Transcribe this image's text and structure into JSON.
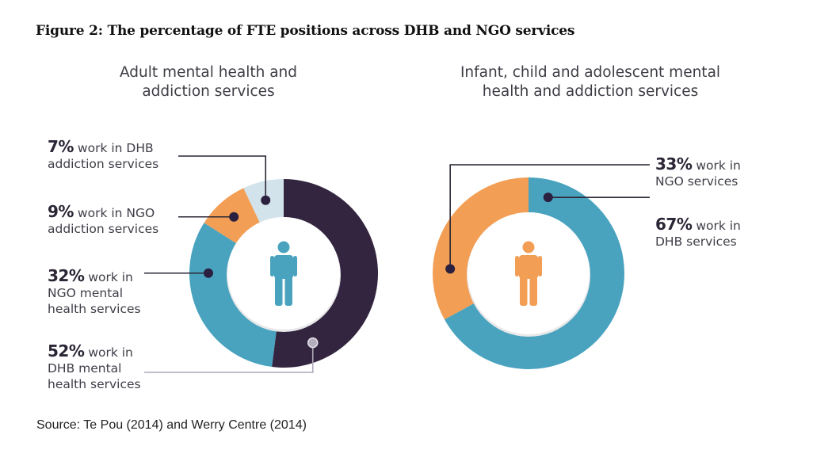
{
  "figure_title": "Figure 2: The percentage of FTE positions across DHB and NGO services",
  "source": "Source: Te Pou (2014) and Werry Centre (2014)",
  "colors": {
    "dark_purple": "#33253f",
    "teal": "#49a3bf",
    "orange": "#f29e55",
    "light_blue": "#d3e3ec",
    "leader_line": "#2b2535",
    "leader_light": "#b0a8b8"
  },
  "chart_data": [
    {
      "type": "pie",
      "variant": "donut",
      "title": "Adult mental health and addiction services",
      "title_lines": [
        "Adult mental health and",
        "addiction services"
      ],
      "center_icon": "person-icon",
      "center_icon_color": "#49a3bf",
      "slices": [
        {
          "name": "DHB mental health services",
          "value": 52,
          "pct_label": "52%",
          "lines": [
            "work in",
            "DHB mental",
            "health services"
          ],
          "color": "#33253f"
        },
        {
          "name": "NGO mental health services",
          "value": 32,
          "pct_label": "32%",
          "lines": [
            "work in",
            "NGO mental",
            "health services"
          ],
          "color": "#49a3bf"
        },
        {
          "name": "NGO addiction services",
          "value": 9,
          "pct_label": "9%",
          "lines": [
            "work in NGO",
            "addiction services"
          ],
          "color": "#f29e55"
        },
        {
          "name": "DHB addiction services",
          "value": 7,
          "pct_label": "7%",
          "lines": [
            "work in DHB",
            "addiction services"
          ],
          "color": "#d3e3ec"
        }
      ],
      "direction": "clockwise from top"
    },
    {
      "type": "pie",
      "variant": "donut",
      "title": "Infant, child and adolescent mental health and addiction services",
      "title_lines": [
        "Infant, child and adolescent mental",
        "health and addiction services"
      ],
      "center_icon": "person-icon",
      "center_icon_color": "#f29e55",
      "slices": [
        {
          "name": "DHB services",
          "value": 67,
          "pct_label": "67%",
          "lines": [
            "work in",
            "DHB services"
          ],
          "color": "#49a3bf"
        },
        {
          "name": "NGO services",
          "value": 33,
          "pct_label": "33%",
          "lines": [
            "work in",
            "NGO services"
          ],
          "color": "#f29e55"
        }
      ],
      "direction": "clockwise from top"
    }
  ]
}
